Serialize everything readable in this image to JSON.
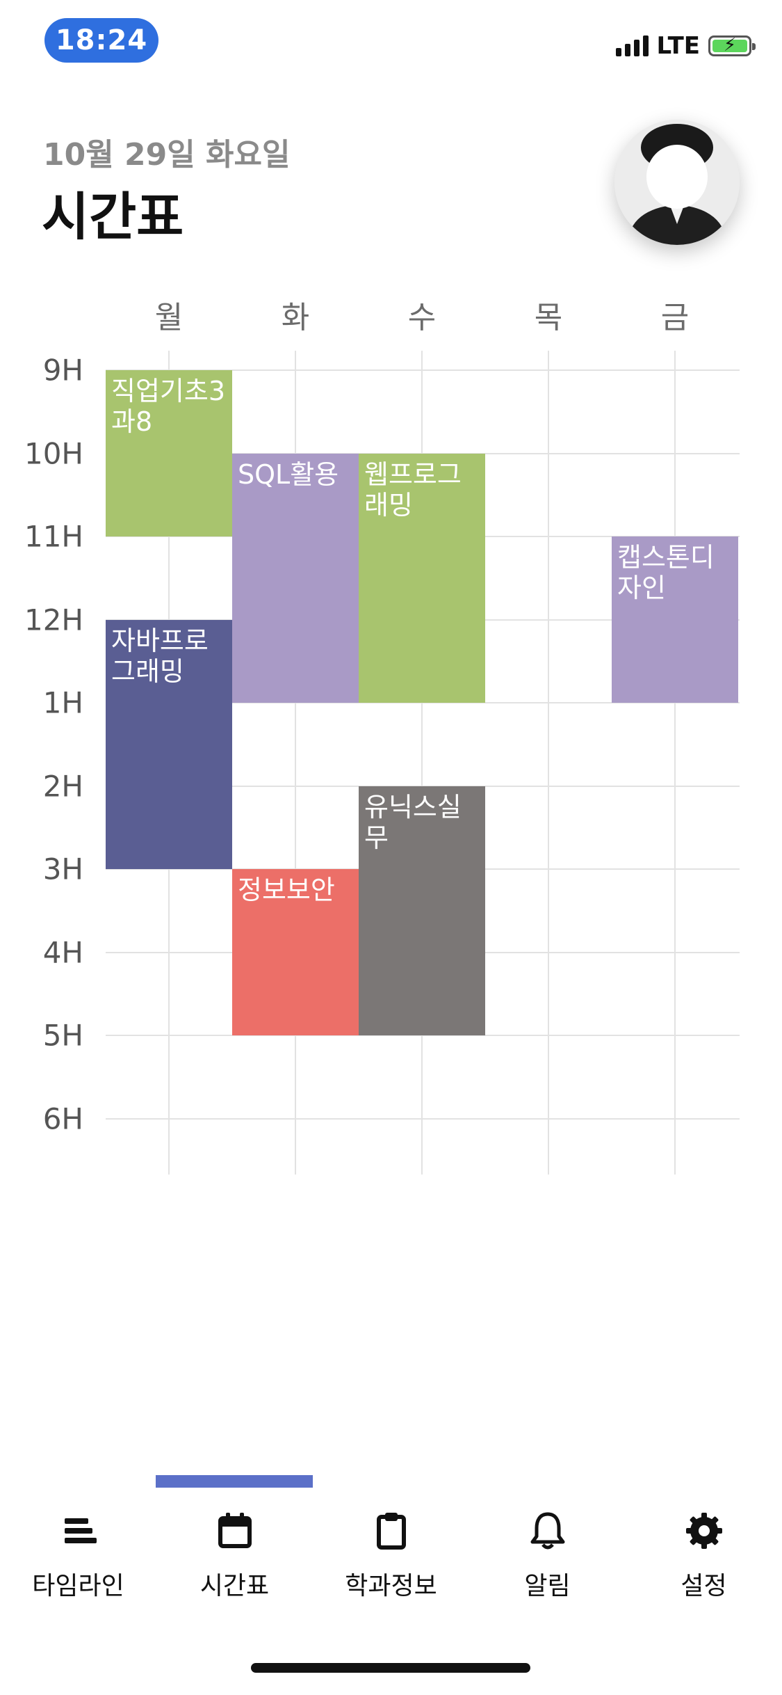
{
  "status_bar": {
    "time": "18:24",
    "network": "LTE",
    "battery_color": "#5cd65c"
  },
  "header": {
    "date": "10월 29일 화요일",
    "title": "시간표"
  },
  "timetable": {
    "days": [
      "월",
      "화",
      "수",
      "목",
      "금"
    ],
    "hours": [
      "9H",
      "10H",
      "11H",
      "12H",
      "1H",
      "2H",
      "3H",
      "4H",
      "5H",
      "6H"
    ],
    "courses": [
      {
        "name": "직업기초3과8",
        "day": 0,
        "start": 9,
        "end": 11,
        "color": "#a8c46e"
      },
      {
        "name": "자바프로그래밍",
        "day": 0,
        "start": 12,
        "end": 15,
        "color": "#5a5e93"
      },
      {
        "name": "SQL활용",
        "day": 1,
        "start": 10,
        "end": 13,
        "color": "#a99ac6"
      },
      {
        "name": "정보보안",
        "day": 1,
        "start": 15,
        "end": 17,
        "color": "#ec6f68"
      },
      {
        "name": "웹프로그래밍",
        "day": 2,
        "start": 10,
        "end": 13,
        "color": "#a8c46e"
      },
      {
        "name": "유닉스실무",
        "day": 2,
        "start": 14,
        "end": 17,
        "color": "#7b7776"
      },
      {
        "name": "캡스톤디자인",
        "day": 4,
        "start": 11,
        "end": 13,
        "color": "#a99ac6"
      }
    ]
  },
  "nav": {
    "active_index": 1,
    "accent": "#5b70c8",
    "items": [
      {
        "label": "타임라인",
        "icon": "timeline-icon"
      },
      {
        "label": "시간표",
        "icon": "calendar-icon"
      },
      {
        "label": "학과정보",
        "icon": "clipboard-icon"
      },
      {
        "label": "알림",
        "icon": "bell-icon"
      },
      {
        "label": "설정",
        "icon": "gear-icon"
      }
    ]
  }
}
